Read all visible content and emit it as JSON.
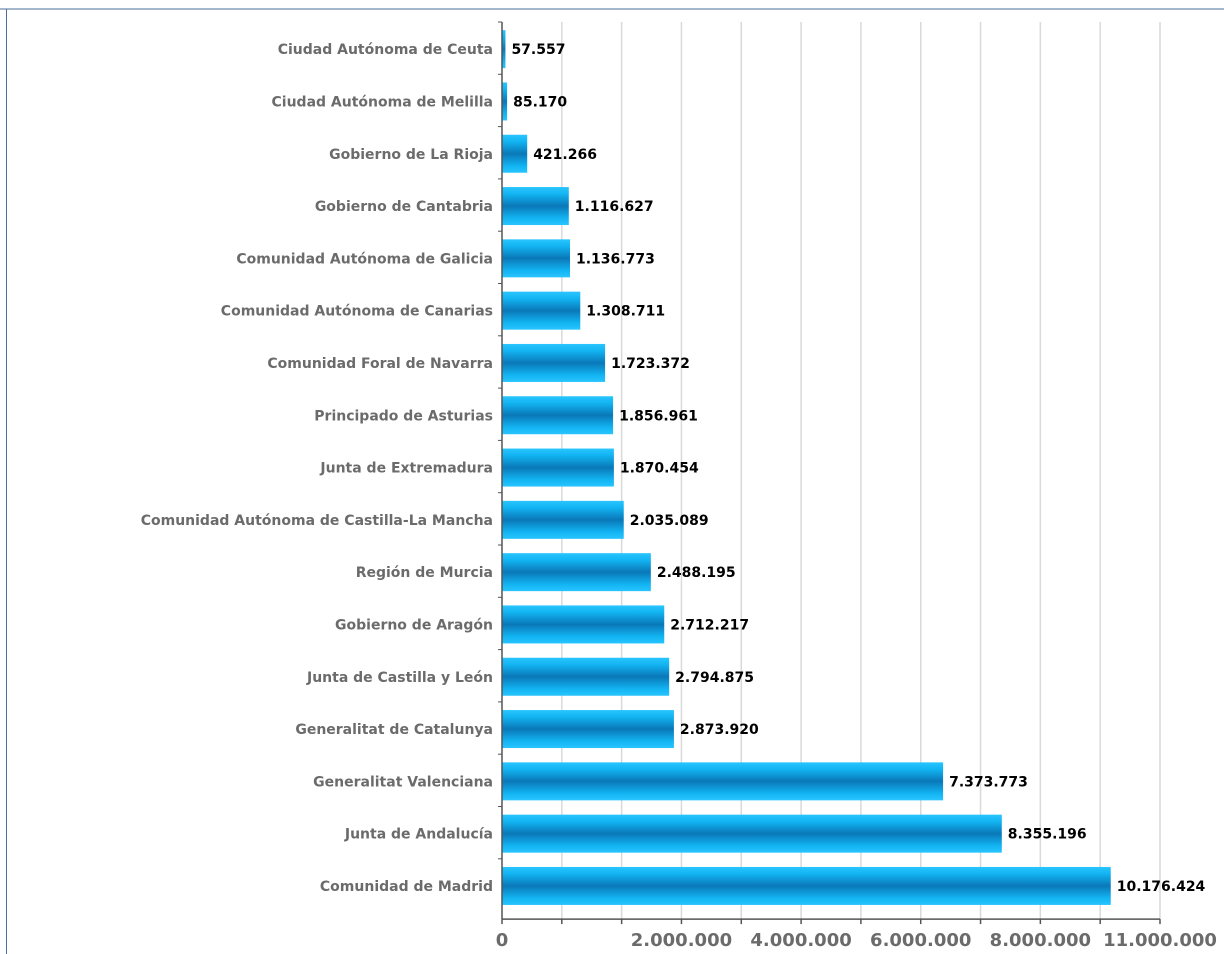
{
  "chart_data": {
    "type": "bar",
    "orientation": "horizontal",
    "categories": [
      "Ciudad Autónoma de Ceuta",
      "Ciudad Autónoma de Melilla",
      "Gobierno de La Rioja",
      "Gobierno de Cantabria",
      "Comunidad Autónoma de Galicia",
      "Comunidad Autónoma de Canarias",
      "Comunidad Foral de Navarra",
      "Principado de Asturias",
      "Junta de Extremadura",
      "Comunidad Autónoma de Castilla-La Mancha",
      "Región de Murcia",
      "Gobierno de Aragón",
      "Junta de Castilla y León",
      "Generalitat de Catalunya",
      "Generalitat Valenciana",
      "Junta de Andalucía",
      "Comunidad de Madrid"
    ],
    "values": [
      57557,
      85170,
      421266,
      1116627,
      1136773,
      1308711,
      1723372,
      1856961,
      1870454,
      2035089,
      2488195,
      2712217,
      2794875,
      2873920,
      7373773,
      8355196,
      10176424
    ],
    "value_labels": [
      "57.557",
      "85.170",
      "421.266",
      "1.116.627",
      "1.136.773",
      "1.308.711",
      "1.723.372",
      "1.856.961",
      "1.870.454",
      "2.035.089",
      "2.488.195",
      "2.712.217",
      "2.794.875",
      "2.873.920",
      "7.373.773",
      "8.355.196",
      "10.176.424"
    ],
    "x_ticks": [
      {
        "value": 0,
        "label": "0"
      },
      {
        "value": 2000000,
        "label": "2.000.000"
      },
      {
        "value": 4000000,
        "label": "4.000.000"
      },
      {
        "value": 6000000,
        "label": "6.000.000"
      },
      {
        "value": 8000000,
        "label": "8.000.000"
      },
      {
        "value": 11000000,
        "label": "11.000.000"
      }
    ],
    "xlim": [
      0,
      11000000
    ],
    "title": "",
    "xlabel": "",
    "ylabel": "",
    "grid": true,
    "legend": "none",
    "colors": {
      "bar_light": "#29c5ff",
      "bar_mid": "#0a9fe0",
      "bar_dark": "#0a78b8",
      "grid": "#d9d9d9",
      "axis": "#555555"
    }
  }
}
